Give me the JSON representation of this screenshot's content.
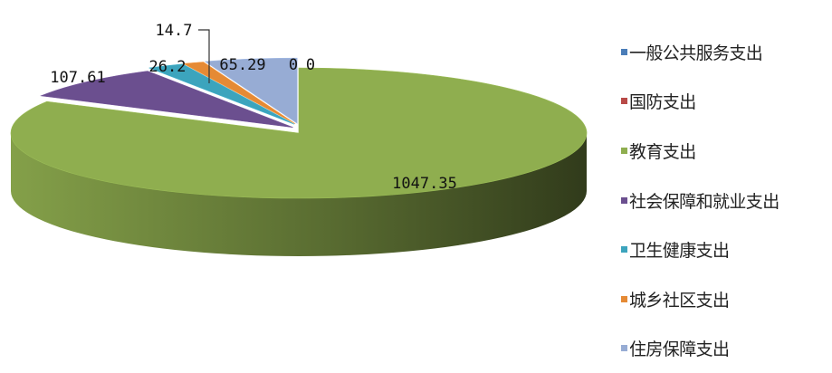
{
  "chart_data": {
    "type": "pie",
    "style": "3d-exploded",
    "title": "",
    "legend_position": "right",
    "slices": [
      {
        "label": "一般公共服务支出",
        "value": 0,
        "value_label": "0",
        "color": "#4a7db8"
      },
      {
        "label": "国防支出",
        "value": 0,
        "value_label": "0",
        "color": "#b84a47"
      },
      {
        "label": "教育支出",
        "value": 1047.35,
        "value_label": "1047.35",
        "color": "#8fae4f"
      },
      {
        "label": "社会保障和就业支出",
        "value": 107.61,
        "value_label": "107.61",
        "color": "#6b4f8f"
      },
      {
        "label": "卫生健康支出",
        "value": 26.2,
        "value_label": "26.2",
        "color": "#3ca4bd"
      },
      {
        "label": "城乡社区支出",
        "value": 14.7,
        "value_label": "14.7",
        "color": "#e58a35"
      },
      {
        "label": "住房保障支出",
        "value": 65.29,
        "value_label": "65.29",
        "color": "#97acd4"
      }
    ]
  }
}
